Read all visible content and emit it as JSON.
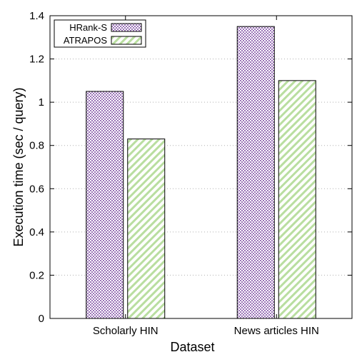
{
  "chart_data": {
    "type": "bar",
    "title": "",
    "xlabel": "Dataset",
    "ylabel": "Execution time (sec / query)",
    "categories": [
      "Scholarly HIN",
      "News articles HIN"
    ],
    "series": [
      {
        "name": "HRank-S",
        "values": [
          1.05,
          1.35
        ],
        "color": "#9b74b8",
        "pattern": "checkered"
      },
      {
        "name": "ATRAPOS",
        "values": [
          0.83,
          1.1
        ],
        "color": "#b9dea0",
        "pattern": "diagonal-hatch"
      }
    ],
    "ylim": [
      0,
      1.4
    ],
    "yticks": [
      "0",
      "0.2",
      "0.4",
      "0.6",
      "0.8",
      "1",
      "1.2",
      "1.4"
    ],
    "grid": true,
    "legend_position": "top-left"
  }
}
